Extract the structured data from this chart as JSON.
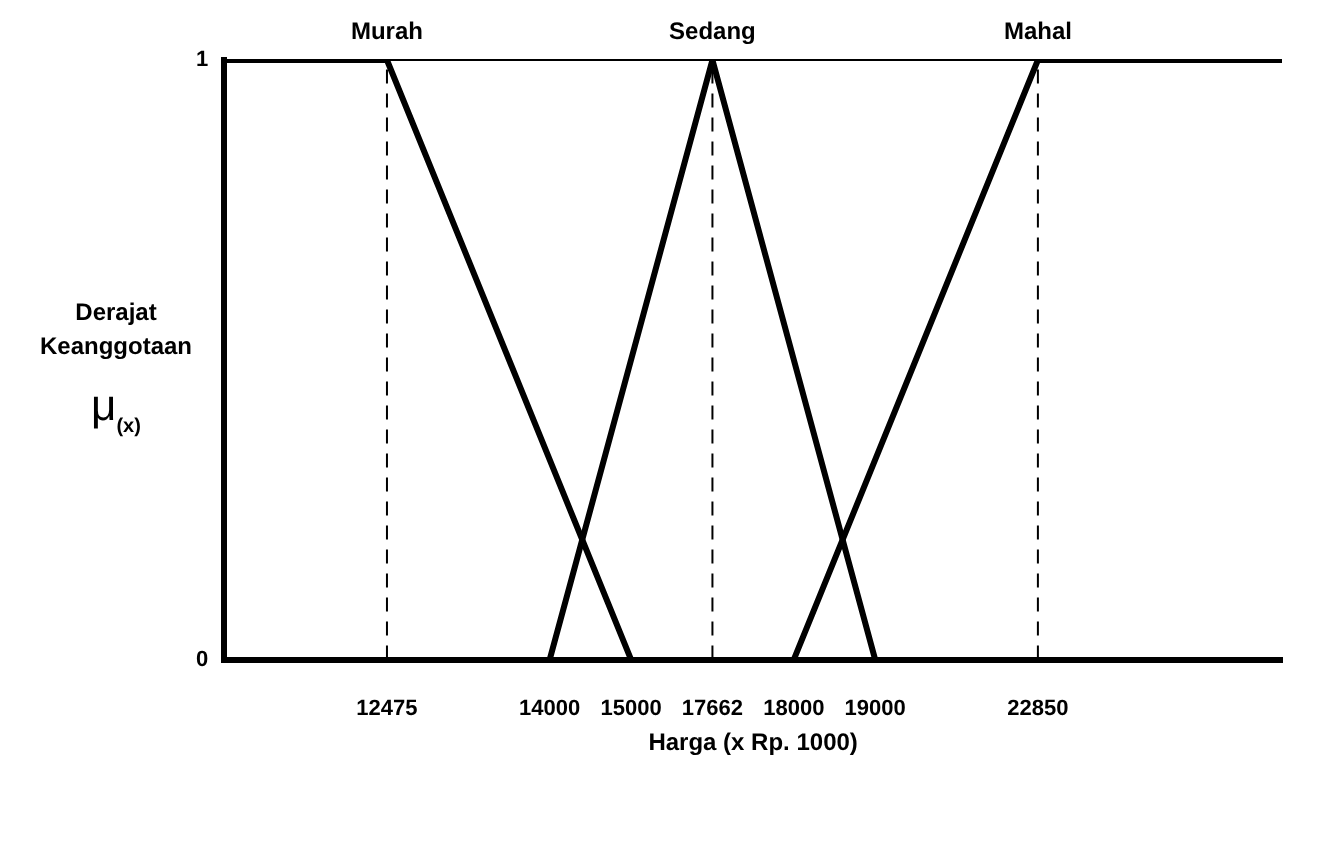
{
  "chart_data": {
    "type": "line",
    "xlabel": "Harga (x Rp. 1000)",
    "ylabel": "Derajat Keanggotaan μ$_{(x)}$",
    "categories": [
      null,
      null,
      "12475",
      null,
      "14000",
      "15000",
      "17662",
      "18000",
      "19000",
      null,
      "22850",
      null,
      null,
      null
    ],
    "series": [
      {
        "name": "Murah",
        "color": "#000000",
        "values": [
          1,
          null,
          1,
          null,
          null,
          0,
          null,
          null,
          null,
          null,
          null,
          null,
          null,
          null
        ]
      },
      {
        "name": "Sedang",
        "color": "#000000",
        "values": [
          null,
          null,
          null,
          null,
          0,
          null,
          1,
          null,
          0,
          null,
          null,
          null,
          null,
          null
        ]
      },
      {
        "name": "Mahal",
        "color": "#000000",
        "values": [
          null,
          null,
          null,
          null,
          null,
          null,
          null,
          0,
          null,
          null,
          1,
          null,
          null,
          1
        ]
      }
    ],
    "ylim": [
      0,
      1
    ],
    "yticks": [
      0,
      1
    ],
    "grid": false,
    "legend": false,
    "marker": "none",
    "line_style": "solid",
    "ref_lines": [
      {
        "axis": "x",
        "value": "12475",
        "line_style": "dashed",
        "color": "#000000"
      },
      {
        "axis": "x",
        "value": "17662",
        "line_style": "dashed",
        "color": "#000000"
      },
      {
        "axis": "x",
        "value": "22850",
        "line_style": "dashed",
        "color": "#000000"
      },
      {
        "axis": "y",
        "value": 1,
        "line_style": "solid",
        "color": "#000000"
      }
    ]
  }
}
